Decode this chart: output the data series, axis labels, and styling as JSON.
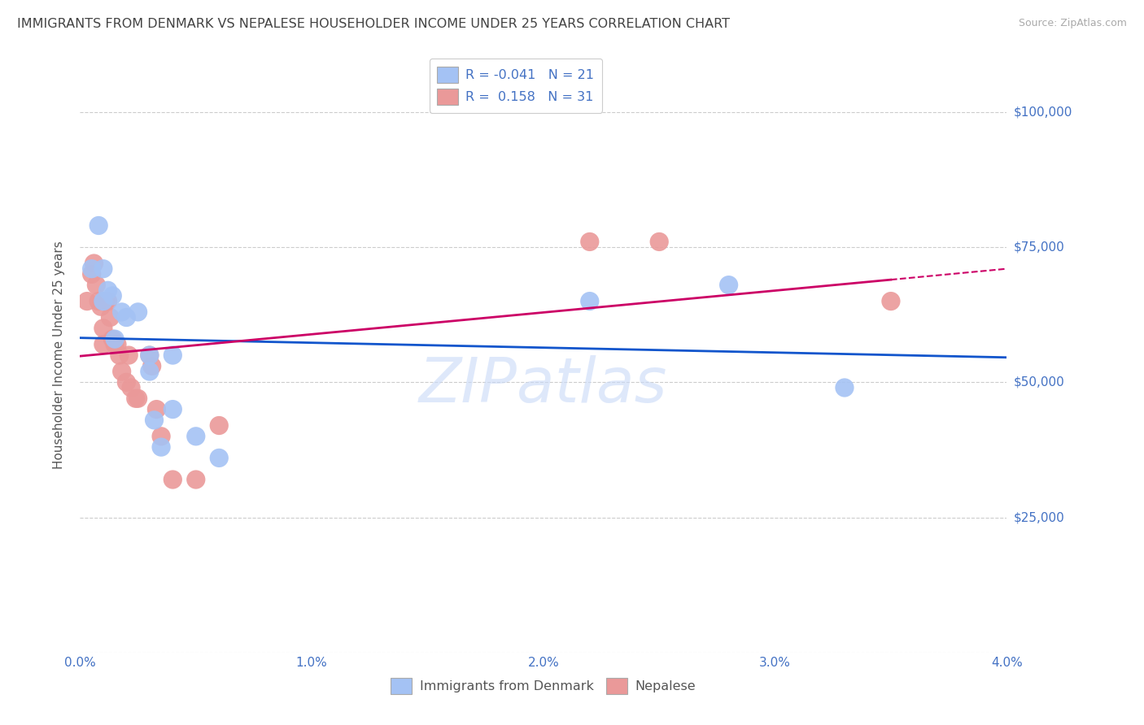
{
  "title": "IMMIGRANTS FROM DENMARK VS NEPALESE HOUSEHOLDER INCOME UNDER 25 YEARS CORRELATION CHART",
  "source": "Source: ZipAtlas.com",
  "ylabel": "Householder Income Under 25 years",
  "legend_bottom": [
    "Immigrants from Denmark",
    "Nepalese"
  ],
  "xlim": [
    0.0,
    0.04
  ],
  "ylim": [
    0,
    110000
  ],
  "yticks": [
    0,
    25000,
    50000,
    75000,
    100000
  ],
  "ytick_labels": [
    "",
    "$25,000",
    "$50,000",
    "$75,000",
    "$100,000"
  ],
  "xticks": [
    0.0,
    0.01,
    0.02,
    0.03,
    0.04
  ],
  "xtick_labels": [
    "0.0%",
    "1.0%",
    "2.0%",
    "3.0%",
    "4.0%"
  ],
  "legend_r_blue": "R = -0.041",
  "legend_n_blue": "N = 21",
  "legend_r_pink": "R =  0.158",
  "legend_n_pink": "N = 31",
  "blue_scatter_color": "#a4c2f4",
  "pink_scatter_color": "#ea9999",
  "blue_line_color": "#1155cc",
  "pink_line_color": "#cc0066",
  "title_color": "#434343",
  "axis_label_color": "#555555",
  "tick_color": "#4472c4",
  "grid_color": "#cccccc",
  "watermark_color": "#c9daf8",
  "legend_text_color": "#4472c4",
  "denmark_x": [
    0.0005,
    0.0008,
    0.001,
    0.001,
    0.0012,
    0.0014,
    0.0015,
    0.0018,
    0.002,
    0.0025,
    0.003,
    0.003,
    0.0032,
    0.0035,
    0.004,
    0.004,
    0.005,
    0.006,
    0.022,
    0.028,
    0.033
  ],
  "denmark_y": [
    71000,
    79000,
    65000,
    71000,
    67000,
    66000,
    58000,
    63000,
    62000,
    63000,
    55000,
    52000,
    43000,
    38000,
    55000,
    45000,
    40000,
    36000,
    65000,
    68000,
    49000
  ],
  "nepalese_x": [
    0.0003,
    0.0005,
    0.0006,
    0.0007,
    0.0008,
    0.0009,
    0.001,
    0.001,
    0.0011,
    0.0012,
    0.0013,
    0.0014,
    0.0015,
    0.0016,
    0.0017,
    0.0018,
    0.002,
    0.0021,
    0.0022,
    0.0024,
    0.0025,
    0.003,
    0.0031,
    0.0033,
    0.0035,
    0.004,
    0.005,
    0.006,
    0.022,
    0.025,
    0.035
  ],
  "nepalese_y": [
    65000,
    70000,
    72000,
    68000,
    65000,
    64000,
    60000,
    57000,
    65000,
    65000,
    62000,
    58000,
    57000,
    57000,
    55000,
    52000,
    50000,
    55000,
    49000,
    47000,
    47000,
    55000,
    53000,
    45000,
    40000,
    32000,
    32000,
    42000,
    76000,
    76000,
    65000
  ]
}
